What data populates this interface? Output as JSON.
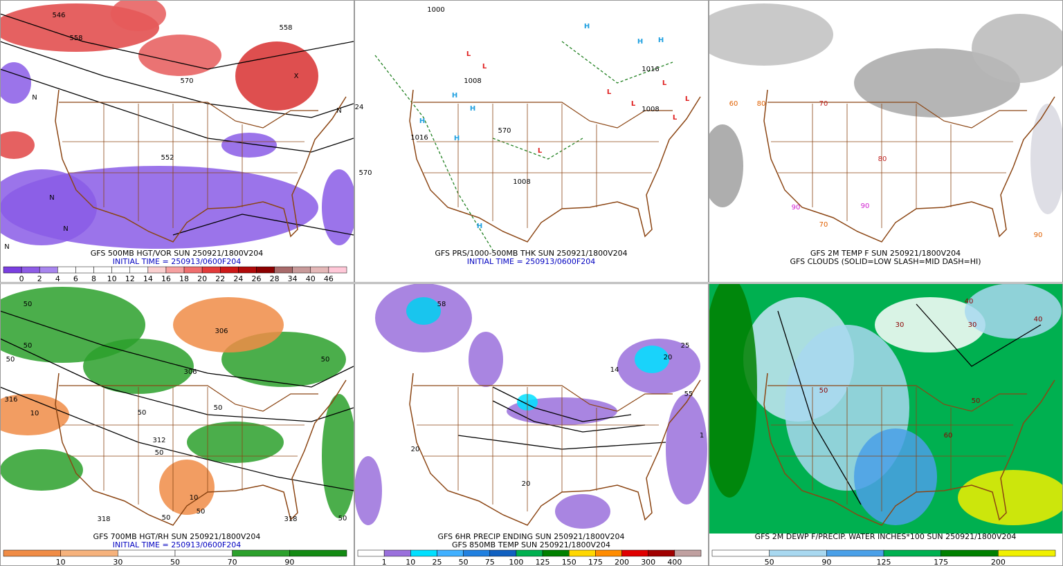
{
  "panels": [
    {
      "caption": [
        "GFS 500MB HGT/VOR SUN 250921/1800V204",
        "INITIAL TIME = 250913/0600F204"
      ],
      "caption_colors": [
        "#000000",
        "#0000c0"
      ],
      "map_labels": [
        "546",
        "558",
        "558",
        "570",
        "552",
        "N",
        "N",
        "N",
        "N",
        "N",
        "X"
      ],
      "colorbar": {
        "labels": [
          0,
          2,
          4,
          6,
          8,
          10,
          12,
          14,
          16,
          18,
          20,
          22,
          24,
          26,
          28,
          34,
          40,
          46
        ],
        "colors": [
          "#7a3fe0",
          "#8e5ce6",
          "#a886ee",
          "#ffffff",
          "#ffffff",
          "#ffffff",
          "#ffffff",
          "#ffffff",
          "#fbd0d0",
          "#f6a0a0",
          "#ef6e6e",
          "#e23a3a",
          "#cc1818",
          "#b00a0a",
          "#8c0000",
          "#a86a6a",
          "#c89a9a",
          "#e4b8b8",
          "#ffc8d8"
        ]
      }
    },
    {
      "caption": [
        "GFS PRS/1000-500MB THK SUN 250921/1800V204",
        "INITIAL TIME = 250913/0600F204"
      ],
      "caption_colors": [
        "#000000",
        "#0000c0"
      ],
      "map_labels": [
        "L",
        "L",
        "L",
        "L",
        "L",
        "L",
        "L",
        "L",
        "H",
        "H",
        "H",
        "H",
        "H",
        "H",
        "H",
        "H",
        "1008",
        "1016",
        "1008",
        "1008",
        "1016",
        "1000",
        "570",
        "570",
        "24"
      ]
    },
    {
      "caption": [
        "GFS 2M TEMP F SUN 250921/1800V204",
        "GFS CLOUDS (SOLID=LOW SLASH=MID DASH=HI)"
      ],
      "caption_colors": [
        "#000000",
        "#000000"
      ],
      "map_labels": [
        "70",
        "80",
        "90",
        "90",
        "80",
        "60",
        "70",
        "90"
      ]
    },
    {
      "caption": [
        "GFS 700MB HGT/RH SUN 250921/1800V204",
        "INITIAL TIME = 250913/0600F204"
      ],
      "caption_colors": [
        "#000000",
        "#0000c0"
      ],
      "map_labels": [
        "50",
        "50",
        "50",
        "316",
        "306",
        "306",
        "312",
        "50",
        "50",
        "10",
        "10",
        "50",
        "50",
        "318",
        "318",
        "50",
        "50",
        "50"
      ],
      "colorbar": {
        "labels": [
          10,
          30,
          50,
          70,
          90
        ],
        "colors": [
          "#f08c46",
          "#f6b27c",
          "#ffffff",
          "#ffffff",
          "#2ca02c",
          "#138a13"
        ]
      }
    },
    {
      "caption": [
        "GFS 6HR PRECIP ENDING SUN 250921/1800V204",
        "GFS 850MB TEMP SUN 250921/1800V204"
      ],
      "caption_colors": [
        "#000000",
        "#000000"
      ],
      "map_labels": [
        "58",
        "55",
        "25",
        "14",
        "20",
        "20",
        "20",
        "1"
      ],
      "colorbar": {
        "labels": [
          1,
          10,
          25,
          50,
          75,
          100,
          125,
          150,
          175,
          200,
          300,
          400
        ],
        "colors": [
          "#ffffff",
          "#9a70dc",
          "#00e0ff",
          "#40b0ff",
          "#2080e0",
          "#1060c0",
          "#00b050",
          "#008000",
          "#ffd700",
          "#ff8c00",
          "#e00000",
          "#a00000",
          "#c0a0a0"
        ]
      }
    },
    {
      "caption": [
        "GFS 2M DEWP F/PRECIP. WATER INCHES*100 SUN 250921/1800V204"
      ],
      "caption_colors": [
        "#000000"
      ],
      "map_labels": [
        "40",
        "30",
        "50",
        "50",
        "40",
        "30",
        "60"
      ],
      "colorbar": {
        "labels": [
          50,
          90,
          125,
          175,
          200
        ],
        "colors": [
          "#ffffff",
          "#a8d8f0",
          "#4aa0e8",
          "#00b050",
          "#008000",
          "#f0f000"
        ]
      }
    }
  ]
}
